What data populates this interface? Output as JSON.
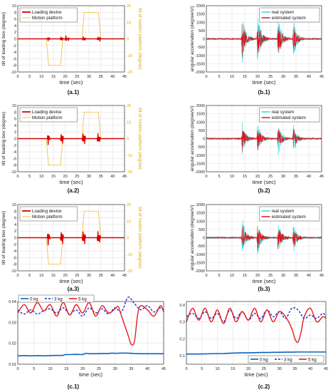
{
  "colors": {
    "loading": "#d90000",
    "motion": "#f2c24a",
    "real": "#35d6d6",
    "estimated": "#e0141e",
    "kg0": "#0b63bd",
    "kg3": "#1a2fd0",
    "kg5": "#e51c1c",
    "axis_right": "#e0a800"
  },
  "chart_data": [
    {
      "id": "a1",
      "type": "line",
      "caption": "(a.1)",
      "xlabel": "time (sec)",
      "ylabel": "tilt of loading box (degree)",
      "y2label": "tilt of motion platform (degree)",
      "xlim": [
        0,
        45
      ],
      "ylim": [
        -10,
        10
      ],
      "y2lim": [
        -20,
        20
      ],
      "xticks": [
        0,
        5,
        10,
        15,
        20,
        25,
        30,
        35,
        40,
        45
      ],
      "xticklabels": [
        "0",
        "5",
        "10",
        "15",
        "20",
        "25",
        "30",
        "35",
        "40",
        "45"
      ],
      "yticks": [
        -10,
        -8,
        -6,
        -4,
        -2,
        0,
        2,
        4,
        6,
        8,
        10
      ],
      "yticklabels": [
        "-10",
        "-8",
        "-6",
        "-4",
        "-2",
        "0",
        "2",
        "4",
        "6",
        "8",
        "10"
      ],
      "y2ticks": [
        -20,
        -10,
        0,
        10,
        20
      ],
      "y2ticklabels": [
        "-20",
        "-10",
        "0",
        "10",
        "20"
      ],
      "legend": [
        "Loading device",
        "Motion platform"
      ],
      "legend_position": "top-left",
      "grid": true,
      "motion": {
        "x": [
          0,
          12,
          13,
          18,
          19,
          27,
          28,
          34,
          35,
          45
        ],
        "y": [
          0,
          0,
          -16,
          -16,
          0,
          0,
          16,
          16,
          0,
          0
        ]
      },
      "loading_spikes": [
        [
          12.8,
          -0.6
        ],
        [
          13.2,
          0.4
        ],
        [
          18.2,
          0.5
        ],
        [
          18.8,
          -0.4
        ],
        [
          20.3,
          0.9
        ],
        [
          21.3,
          -0.5
        ],
        [
          27.6,
          0.6
        ],
        [
          28.3,
          -0.4
        ],
        [
          33.8,
          0.5
        ],
        [
          34.6,
          -0.7
        ]
      ]
    },
    {
      "id": "b1",
      "type": "line",
      "caption": "(b.1)",
      "xlabel": "time (sec)",
      "ylabel": "angular acceleration (degree/s²)",
      "xlim": [
        0,
        45
      ],
      "ylim": [
        -2000,
        2000
      ],
      "xticks": [
        0,
        5,
        10,
        15,
        20,
        25,
        30,
        35,
        40,
        45
      ],
      "xticklabels": [
        "0",
        "5",
        "10",
        "15",
        "20",
        "25",
        "30",
        "35",
        "40",
        "45"
      ],
      "yticks": [
        -2000,
        -1500,
        -1000,
        -500,
        0,
        500,
        1000,
        1500,
        2000
      ],
      "yticklabels": [
        "-2000",
        "-1500",
        "-1000",
        "-500",
        "0",
        "500",
        "1000",
        "1500",
        "2000"
      ],
      "legend": [
        "real system",
        "estimated system"
      ],
      "legend_position": "top-right",
      "grid": true,
      "bursts": [
        [
          14,
          1500
        ],
        [
          20,
          1700
        ],
        [
          28,
          1500
        ],
        [
          34,
          1100
        ]
      ]
    },
    {
      "id": "a2",
      "type": "line",
      "caption": "(a.2)",
      "xlabel": "time (sec)",
      "ylabel": "tilt of loading box (degree)",
      "y2label": "tilt of motion platform (degree)",
      "xlim": [
        0,
        45
      ],
      "ylim": [
        -10,
        10
      ],
      "y2lim": [
        -20,
        20
      ],
      "xticks": [
        0,
        5,
        10,
        15,
        20,
        25,
        30,
        35,
        40,
        45
      ],
      "xticklabels": [
        "0",
        "5",
        "10",
        "15",
        "20",
        "25",
        "30",
        "35",
        "40",
        "45"
      ],
      "yticks": [
        -10,
        -8,
        -6,
        -4,
        -2,
        0,
        2,
        4,
        6,
        8,
        10
      ],
      "yticklabels": [
        "-10",
        "-8",
        "-6",
        "-4",
        "-2",
        "0",
        "2",
        "4",
        "6",
        "8",
        "10"
      ],
      "y2ticks": [
        -20,
        -10,
        0,
        10,
        20
      ],
      "y2ticklabels": [
        "-20",
        "-10",
        "0",
        "10",
        "20"
      ],
      "legend": [
        "Loading device",
        "Motion platform"
      ],
      "legend_position": "top-left",
      "grid": true,
      "motion": {
        "x": [
          0,
          12,
          13,
          18,
          19,
          27,
          28,
          34,
          35,
          45
        ],
        "y": [
          0,
          0,
          -16,
          -16,
          0,
          0,
          16,
          16,
          0,
          0
        ]
      },
      "loading_spikes": [
        [
          12.8,
          -1.8
        ],
        [
          13.3,
          0.6
        ],
        [
          18.3,
          1.2
        ],
        [
          18.9,
          -1.4
        ],
        [
          27.5,
          1.4
        ],
        [
          28.2,
          -1.5
        ],
        [
          33.8,
          1.5
        ],
        [
          34.5,
          -0.8
        ]
      ]
    },
    {
      "id": "b2",
      "type": "line",
      "caption": "(b.2)",
      "xlabel": "time (sec)",
      "ylabel": "angular acceleration (degree/s²)",
      "xlim": [
        0,
        45
      ],
      "ylim": [
        -2000,
        2000
      ],
      "xticks": [
        0,
        5,
        10,
        15,
        20,
        25,
        30,
        35,
        40,
        45
      ],
      "xticklabels": [
        "0",
        "5",
        "10",
        "15",
        "20",
        "25",
        "30",
        "35",
        "40",
        "45"
      ],
      "yticks": [
        -2000,
        -1500,
        -1000,
        -500,
        0,
        500,
        1000,
        1500,
        2000
      ],
      "yticklabels": [
        "-2000",
        "-1500",
        "-1000",
        "-500",
        "0",
        "500",
        "1000",
        "1500",
        "2000"
      ],
      "legend": [
        "real system",
        "estimated system"
      ],
      "legend_position": "top-right",
      "grid": true,
      "bursts": [
        [
          14,
          1000
        ],
        [
          20,
          1000
        ],
        [
          28,
          1050
        ],
        [
          34,
          850
        ]
      ]
    },
    {
      "id": "a3",
      "type": "line",
      "caption": "(a.3)",
      "xlabel": "time (sec)",
      "ylabel": "tilt of loading box (degree)",
      "y2label": "tilt of motion platform (degree)",
      "xlim": [
        0,
        45
      ],
      "ylim": [
        -10,
        10
      ],
      "y2lim": [
        -20,
        20
      ],
      "xticks": [
        0,
        5,
        10,
        15,
        20,
        25,
        30,
        35,
        40,
        45
      ],
      "xticklabels": [
        "0",
        "5",
        "10",
        "15",
        "20",
        "25",
        "30",
        "35",
        "40",
        "45"
      ],
      "yticks": [
        -10,
        -8,
        -6,
        -4,
        -2,
        0,
        2,
        4,
        6,
        8,
        10
      ],
      "yticklabels": [
        "-10",
        "-8",
        "-6",
        "-4",
        "-2",
        "0",
        "2",
        "4",
        "6",
        "8",
        "10"
      ],
      "y2ticks": [
        -20,
        -10,
        0,
        10,
        20
      ],
      "y2ticklabels": [
        "-20",
        "-10",
        "0",
        "10",
        "20"
      ],
      "legend": [
        "Loading device",
        "Motion platform"
      ],
      "legend_position": "top-left",
      "grid": true,
      "motion": {
        "x": [
          0,
          12,
          13,
          18,
          19,
          27,
          28,
          34,
          35,
          45
        ],
        "y": [
          0,
          0,
          -16,
          -16,
          0,
          0,
          16,
          16,
          0,
          0
        ]
      },
      "loading_spikes": [
        [
          12.8,
          -2.2
        ],
        [
          13.3,
          0.8
        ],
        [
          18.3,
          1.5
        ],
        [
          18.9,
          -1.8
        ],
        [
          27.5,
          1.7
        ],
        [
          28.2,
          -1.8
        ],
        [
          33.8,
          1.8
        ],
        [
          34.5,
          -1.3
        ]
      ]
    },
    {
      "id": "b3",
      "type": "line",
      "caption": "(b.3)",
      "xlabel": "time (sec)",
      "ylabel": "angular acceleration (degree/s²)",
      "xlim": [
        0,
        45
      ],
      "ylim": [
        -2000,
        2000
      ],
      "xticks": [
        0,
        5,
        10,
        15,
        20,
        25,
        30,
        35,
        40,
        45
      ],
      "xticklabels": [
        "0",
        "5",
        "10",
        "15",
        "20",
        "25",
        "30",
        "35",
        "40",
        "45"
      ],
      "yticks": [
        -2000,
        -1500,
        -1000,
        -500,
        0,
        500,
        1000,
        1500,
        2000
      ],
      "yticklabels": [
        "-2000",
        "-1500",
        "-1000",
        "-500",
        "0",
        "500",
        "1000",
        "1500",
        "2000"
      ],
      "legend": [
        "real system",
        "estimated system"
      ],
      "legend_position": "top-right",
      "grid": true,
      "bursts": [
        [
          14,
          1200
        ],
        [
          20,
          1000
        ],
        [
          28,
          1000
        ],
        [
          34,
          900
        ]
      ]
    },
    {
      "id": "c1",
      "type": "line",
      "caption": "(c.1)",
      "xlabel": "time (sec)",
      "xlim": [
        0,
        45
      ],
      "ylim": [
        0.01,
        0.04
      ],
      "xticks": [
        0,
        5,
        10,
        15,
        20,
        25,
        30,
        35,
        40,
        45
      ],
      "xticklabels": [
        "0",
        "5",
        "10",
        "15",
        "20",
        "25",
        "30",
        "35",
        "40",
        "45"
      ],
      "yticks": [
        0.01,
        0.02,
        0.03,
        0.04
      ],
      "yticklabels": [
        "0.01",
        "0.02",
        "0.03",
        "0.04"
      ],
      "legend": [
        "0 kg",
        "3 kg",
        "5 kg"
      ],
      "legend_position": "top-left",
      "grid": true,
      "series": [
        {
          "name": "0 kg",
          "x": [
            0,
            2,
            4,
            6,
            8,
            10,
            12,
            14,
            14.5,
            16,
            18,
            20,
            21,
            22,
            24,
            26,
            28,
            29,
            30,
            32,
            34,
            36,
            38,
            40,
            42,
            44,
            45
          ],
          "y": [
            0.014,
            0.0141,
            0.014,
            0.0141,
            0.014,
            0.0141,
            0.0142,
            0.0142,
            0.0146,
            0.0146,
            0.0147,
            0.0146,
            0.0152,
            0.015,
            0.015,
            0.0151,
            0.0151,
            0.0153,
            0.0152,
            0.0153,
            0.0153,
            0.0151,
            0.015,
            0.015,
            0.015,
            0.015,
            0.015
          ]
        },
        {
          "name": "3 kg",
          "x": [
            0,
            2,
            4,
            6,
            8,
            10,
            12,
            14,
            16,
            18,
            20,
            22,
            24,
            26,
            28,
            30,
            32,
            34,
            36,
            38,
            40,
            42,
            44,
            45
          ],
          "y": [
            0.036,
            0.034,
            0.036,
            0.034,
            0.0355,
            0.0365,
            0.0345,
            0.037,
            0.034,
            0.036,
            0.033,
            0.037,
            0.0345,
            0.0365,
            0.034,
            0.037,
            0.035,
            0.042,
            0.039,
            0.036,
            0.038,
            0.035,
            0.037,
            0.036
          ]
        },
        {
          "name": "5 kg",
          "x": [
            0,
            2,
            4,
            6,
            8,
            10,
            12,
            14,
            16,
            18,
            20,
            22,
            24,
            26,
            28,
            30,
            31,
            32,
            34,
            35,
            36,
            37,
            38,
            40,
            42,
            44,
            45
          ],
          "y": [
            0.0345,
            0.0385,
            0.0345,
            0.0395,
            0.0355,
            0.0385,
            0.033,
            0.0395,
            0.0335,
            0.0385,
            0.0345,
            0.0395,
            0.033,
            0.038,
            0.0345,
            0.0365,
            0.0375,
            0.033,
            0.024,
            0.0195,
            0.021,
            0.034,
            0.038,
            0.036,
            0.033,
            0.038,
            0.035
          ]
        }
      ]
    },
    {
      "id": "c2",
      "type": "line",
      "caption": "(c.2)",
      "xlabel": "time (sec)",
      "xlim": [
        0,
        45
      ],
      "ylim": [
        0.05,
        0.42
      ],
      "xticks": [
        0,
        5,
        10,
        15,
        20,
        25,
        30,
        35,
        40,
        45
      ],
      "xticklabels": [
        "0",
        "5",
        "10",
        "15",
        "20",
        "25",
        "30",
        "35",
        "40",
        "45"
      ],
      "yticks": [
        0.1,
        0.2,
        0.3,
        0.4
      ],
      "yticklabels": [
        "0.1",
        "0.2",
        "0.3",
        "0.4"
      ],
      "legend": [
        "0 kg",
        "3 kg",
        "5 kg"
      ],
      "legend_position": "bottom-right",
      "grid": true,
      "series": [
        {
          "name": "0 kg",
          "x": [
            0,
            4,
            8,
            12,
            14,
            16,
            18,
            20,
            22,
            24,
            26,
            28,
            30,
            32,
            34,
            36,
            38,
            40,
            42,
            45
          ],
          "y": [
            0.11,
            0.11,
            0.112,
            0.113,
            0.115,
            0.116,
            0.117,
            0.117,
            0.118,
            0.119,
            0.119,
            0.12,
            0.12,
            0.121,
            0.121,
            0.122,
            0.122,
            0.122,
            0.122,
            0.122
          ]
        },
        {
          "name": "3 kg",
          "x": [
            0,
            2,
            4,
            6,
            8,
            10,
            12,
            14,
            16,
            18,
            20,
            22,
            24,
            26,
            28,
            30,
            32,
            34,
            36,
            38,
            40,
            42,
            44,
            45
          ],
          "y": [
            0.33,
            0.35,
            0.32,
            0.36,
            0.32,
            0.35,
            0.3,
            0.37,
            0.32,
            0.36,
            0.31,
            0.35,
            0.32,
            0.37,
            0.33,
            0.36,
            0.32,
            0.38,
            0.37,
            0.32,
            0.34,
            0.32,
            0.35,
            0.33
          ]
        },
        {
          "name": "5 kg",
          "x": [
            0,
            2,
            4,
            6,
            8,
            10,
            12,
            14,
            16,
            18,
            20,
            22,
            24,
            26,
            28,
            30,
            32,
            34,
            35,
            36,
            37,
            38,
            40,
            42,
            44,
            45
          ],
          "y": [
            0.3,
            0.38,
            0.31,
            0.38,
            0.3,
            0.37,
            0.29,
            0.38,
            0.3,
            0.36,
            0.31,
            0.38,
            0.3,
            0.37,
            0.3,
            0.36,
            0.33,
            0.26,
            0.2,
            0.18,
            0.24,
            0.33,
            0.38,
            0.3,
            0.33,
            0.32
          ]
        }
      ]
    }
  ]
}
